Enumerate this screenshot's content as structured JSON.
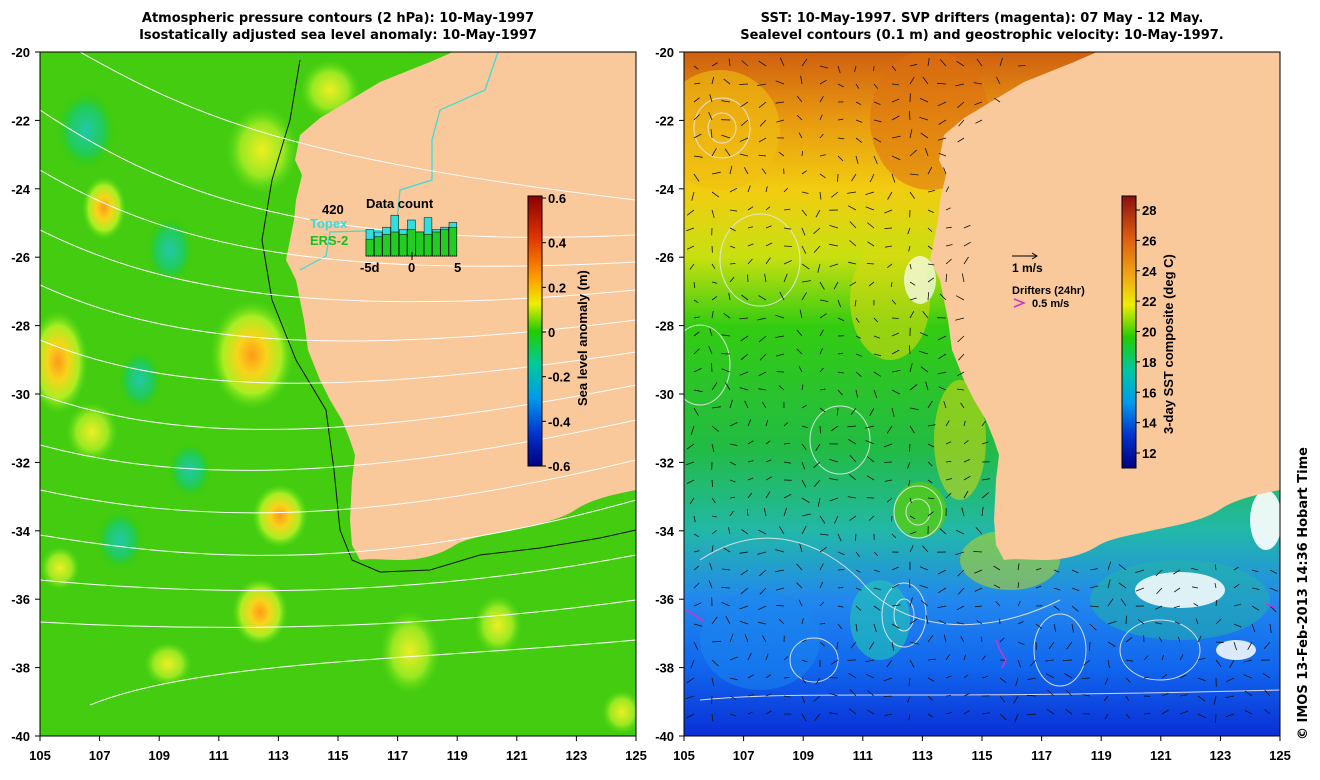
{
  "left_panel": {
    "title_line1": "Atmospheric pressure contours (2 hPa): 10-May-1997",
    "title_line2": "Isostatically adjusted sea level anomaly: 10-May-1997",
    "x_ticks": [
      "105",
      "107",
      "109",
      "111",
      "113",
      "115",
      "117",
      "119",
      "121",
      "123",
      "125"
    ],
    "y_ticks": [
      "-20",
      "-22",
      "-24",
      "-26",
      "-28",
      "-30",
      "-32",
      "-34",
      "-36",
      "-38",
      "-40"
    ],
    "data_count": {
      "total": "420",
      "label": "Data count",
      "topex_label": "Topex",
      "ers2_label": "ERS-2",
      "tick_labels": [
        "-5d",
        "0",
        "5"
      ],
      "topex_values": [
        0.55,
        0.5,
        0.6,
        0.85,
        0.55,
        0.75,
        0.5,
        0.8,
        0.55,
        0.6,
        0.7
      ],
      "ers2_values": [
        0.35,
        0.4,
        0.45,
        0.5,
        0.45,
        0.55,
        0.5,
        0.45,
        0.5,
        0.55,
        0.6
      ]
    },
    "colorbar": {
      "label": "Sea level anomaly (m)",
      "ticks": [
        "0.6",
        "0.4",
        "0.2",
        "0",
        "-0.2",
        "-0.4",
        "-0.6"
      ]
    }
  },
  "right_panel": {
    "title_line1": "SST: 10-May-1997. SVP drifters (magenta): 07 May - 12 May.",
    "title_line2": "Sealevel contours (0.1 m) and geostrophic velocity: 10-May-1997.",
    "x_ticks": [
      "105",
      "107",
      "109",
      "111",
      "113",
      "115",
      "117",
      "119",
      "121",
      "123",
      "125"
    ],
    "y_ticks": [
      "-20",
      "-22",
      "-24",
      "-26",
      "-28",
      "-30",
      "-32",
      "-34",
      "-36",
      "-38",
      "-40"
    ],
    "velocity_legend": "1 m/s",
    "drifter_legend_title": "Drifters (24hr)",
    "drifter_legend_speed": "0.5 m/s",
    "colorbar": {
      "label": "3-day SST composite (deg C)",
      "ticks": [
        "28",
        "26",
        "24",
        "22",
        "20",
        "18",
        "16",
        "14",
        "12"
      ]
    }
  },
  "credit": "© IMOS 13-Feb-2013 14:36 Hobart Time",
  "colors": {
    "land": "#f9c89b",
    "ocean_green": "#33cc00",
    "topex": "#33dddd",
    "ers2": "#22bb22",
    "drifter": "#cc33cc"
  }
}
